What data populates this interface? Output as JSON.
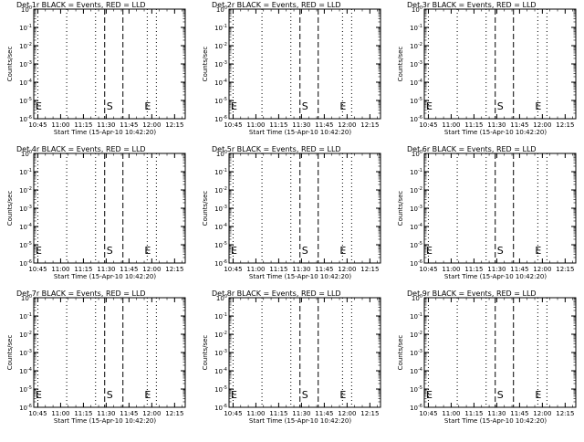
{
  "chart_data": [
    {
      "type": "line",
      "title": "Det 1r BLACK = Events, RED = LLD",
      "xlabel": "Start Time (15-Apr-10 10:42:20)",
      "ylabel": "Counts/sec",
      "x_tick_labels": [
        "10:45",
        "11:00",
        "11:15",
        "11:30",
        "11:45",
        "12:00",
        "12:15"
      ],
      "y_tick_labels": [
        "10^0",
        "10^-1",
        "10^-2",
        "10^-3",
        "10^-4",
        "10^-5",
        "10^-6"
      ],
      "y_scale": "log",
      "ylim": [
        1e-06,
        1
      ],
      "xlim": [
        "10:42:20",
        "12:22:00"
      ],
      "dotted_lines": [
        "10:45",
        "11:04",
        "11:23",
        "11:57",
        "12:03"
      ],
      "dashed_lines": [
        "11:29",
        "11:41"
      ],
      "markers": [
        {
          "label": "E",
          "x": "10:42:20"
        },
        {
          "label": "S",
          "x": "11:29"
        },
        {
          "label": "E",
          "x": "11:54"
        }
      ],
      "series": []
    },
    {
      "type": "line",
      "title": "Det 2r BLACK = Events, RED = LLD",
      "xlabel": "Start Time (15-Apr-10 10:42:20)",
      "ylabel": "Counts/sec",
      "x_tick_labels": [
        "10:45",
        "11:00",
        "11:15",
        "11:30",
        "11:45",
        "12:00",
        "12:15"
      ],
      "y_tick_labels": [
        "10^0",
        "10^-1",
        "10^-2",
        "10^-3",
        "10^-4",
        "10^-5",
        "10^-6"
      ],
      "y_scale": "log",
      "ylim": [
        1e-06,
        1
      ],
      "xlim": [
        "10:42:20",
        "12:22:00"
      ],
      "dotted_lines": [
        "10:45",
        "11:04",
        "11:23",
        "11:57",
        "12:03"
      ],
      "dashed_lines": [
        "11:29",
        "11:41"
      ],
      "markers": [
        {
          "label": "E",
          "x": "10:42:20"
        },
        {
          "label": "S",
          "x": "11:29"
        },
        {
          "label": "E",
          "x": "11:54"
        }
      ],
      "series": []
    },
    {
      "type": "line",
      "title": "Det 3r BLACK = Events, RED = LLD",
      "xlabel": "Start Time (15-Apr-10 10:42:20)",
      "ylabel": "Counts/sec",
      "x_tick_labels": [
        "10:45",
        "11:00",
        "11:15",
        "11:30",
        "11:45",
        "12:00",
        "12:15"
      ],
      "y_tick_labels": [
        "10^0",
        "10^-1",
        "10^-2",
        "10^-3",
        "10^-4",
        "10^-5",
        "10^-6"
      ],
      "y_scale": "log",
      "ylim": [
        1e-06,
        1
      ],
      "xlim": [
        "10:42:20",
        "12:22:00"
      ],
      "dotted_lines": [
        "10:45",
        "11:04",
        "11:23",
        "11:57",
        "12:03"
      ],
      "dashed_lines": [
        "11:29",
        "11:41"
      ],
      "markers": [
        {
          "label": "E",
          "x": "10:42:20"
        },
        {
          "label": "S",
          "x": "11:29"
        },
        {
          "label": "E",
          "x": "11:54"
        }
      ],
      "series": []
    },
    {
      "type": "line",
      "title": "Det 4r BLACK = Events, RED = LLD",
      "xlabel": "Start Time (15-Apr-10 10:42:20)",
      "ylabel": "Counts/sec",
      "x_tick_labels": [
        "10:45",
        "11:00",
        "11:15",
        "11:30",
        "11:45",
        "12:00",
        "12:15"
      ],
      "y_tick_labels": [
        "10^0",
        "10^-1",
        "10^-2",
        "10^-3",
        "10^-4",
        "10^-5",
        "10^-6"
      ],
      "y_scale": "log",
      "ylim": [
        1e-06,
        1
      ],
      "xlim": [
        "10:42:20",
        "12:22:00"
      ],
      "dotted_lines": [
        "10:45",
        "11:04",
        "11:23",
        "11:57",
        "12:03"
      ],
      "dashed_lines": [
        "11:29",
        "11:41"
      ],
      "markers": [
        {
          "label": "E",
          "x": "10:42:20"
        },
        {
          "label": "S",
          "x": "11:29"
        },
        {
          "label": "E",
          "x": "11:54"
        }
      ],
      "series": []
    },
    {
      "type": "line",
      "title": "Det 5r BLACK = Events, RED = LLD",
      "xlabel": "Start Time (15-Apr-10 10:42:20)",
      "ylabel": "Counts/sec",
      "x_tick_labels": [
        "10:45",
        "11:00",
        "11:15",
        "11:30",
        "11:45",
        "12:00",
        "12:15"
      ],
      "y_tick_labels": [
        "10^0",
        "10^-1",
        "10^-2",
        "10^-3",
        "10^-4",
        "10^-5",
        "10^-6"
      ],
      "y_scale": "log",
      "ylim": [
        1e-06,
        1
      ],
      "xlim": [
        "10:42:20",
        "12:22:00"
      ],
      "dotted_lines": [
        "10:45",
        "11:04",
        "11:23",
        "11:57",
        "12:03"
      ],
      "dashed_lines": [
        "11:29",
        "11:41"
      ],
      "markers": [
        {
          "label": "E",
          "x": "10:42:20"
        },
        {
          "label": "S",
          "x": "11:29"
        },
        {
          "label": "E",
          "x": "11:54"
        }
      ],
      "series": []
    },
    {
      "type": "line",
      "title": "Det 6r BLACK = Events, RED = LLD",
      "xlabel": "Start Time (15-Apr-10 10:42:20)",
      "ylabel": "Counts/sec",
      "x_tick_labels": [
        "10:45",
        "11:00",
        "11:15",
        "11:30",
        "11:45",
        "12:00",
        "12:15"
      ],
      "y_tick_labels": [
        "10^0",
        "10^-1",
        "10^-2",
        "10^-3",
        "10^-4",
        "10^-5",
        "10^-6"
      ],
      "y_scale": "log",
      "ylim": [
        1e-06,
        1
      ],
      "xlim": [
        "10:42:20",
        "12:22:00"
      ],
      "dotted_lines": [
        "10:45",
        "11:04",
        "11:23",
        "11:57",
        "12:03"
      ],
      "dashed_lines": [
        "11:29",
        "11:41"
      ],
      "markers": [
        {
          "label": "E",
          "x": "10:42:20"
        },
        {
          "label": "S",
          "x": "11:29"
        },
        {
          "label": "E",
          "x": "11:54"
        }
      ],
      "series": []
    },
    {
      "type": "line",
      "title": "Det 7r BLACK = Events, RED = LLD",
      "xlabel": "Start Time (15-Apr-10 10:42:20)",
      "ylabel": "Counts/sec",
      "x_tick_labels": [
        "10:45",
        "11:00",
        "11:15",
        "11:30",
        "11:45",
        "12:00",
        "12:15"
      ],
      "y_tick_labels": [
        "10^0",
        "10^-1",
        "10^-2",
        "10^-3",
        "10^-4",
        "10^-5",
        "10^-6"
      ],
      "y_scale": "log",
      "ylim": [
        1e-06,
        1
      ],
      "xlim": [
        "10:42:20",
        "12:22:00"
      ],
      "dotted_lines": [
        "10:45",
        "11:04",
        "11:23",
        "11:57",
        "12:03"
      ],
      "dashed_lines": [
        "11:29",
        "11:41"
      ],
      "markers": [
        {
          "label": "E",
          "x": "10:42:20"
        },
        {
          "label": "S",
          "x": "11:29"
        },
        {
          "label": "E",
          "x": "11:54"
        }
      ],
      "series": []
    },
    {
      "type": "line",
      "title": "Det 8r BLACK = Events, RED = LLD",
      "xlabel": "Start Time (15-Apr-10 10:42:20)",
      "ylabel": "Counts/sec",
      "x_tick_labels": [
        "10:45",
        "11:00",
        "11:15",
        "11:30",
        "11:45",
        "12:00",
        "12:15"
      ],
      "y_tick_labels": [
        "10^0",
        "10^-1",
        "10^-2",
        "10^-3",
        "10^-4",
        "10^-5",
        "10^-6"
      ],
      "y_scale": "log",
      "ylim": [
        1e-06,
        1
      ],
      "xlim": [
        "10:42:20",
        "12:22:00"
      ],
      "dotted_lines": [
        "10:45",
        "11:04",
        "11:23",
        "11:57",
        "12:03"
      ],
      "dashed_lines": [
        "11:29",
        "11:41"
      ],
      "markers": [
        {
          "label": "E",
          "x": "10:42:20"
        },
        {
          "label": "S",
          "x": "11:29"
        },
        {
          "label": "E",
          "x": "11:54"
        }
      ],
      "series": []
    },
    {
      "type": "line",
      "title": "Det 9r BLACK = Events, RED = LLD",
      "xlabel": "Start Time (15-Apr-10 10:42:20)",
      "ylabel": "Counts/sec",
      "x_tick_labels": [
        "10:45",
        "11:00",
        "11:15",
        "11:30",
        "11:45",
        "12:00",
        "12:15"
      ],
      "y_tick_labels": [
        "10^0",
        "10^-1",
        "10^-2",
        "10^-3",
        "10^-4",
        "10^-5",
        "10^-6"
      ],
      "y_scale": "log",
      "ylim": [
        1e-06,
        1
      ],
      "xlim": [
        "10:42:20",
        "12:22:00"
      ],
      "dotted_lines": [
        "10:45",
        "11:04",
        "11:23",
        "11:57",
        "12:03"
      ],
      "dashed_lines": [
        "11:29",
        "11:41"
      ],
      "markers": [
        {
          "label": "E",
          "x": "10:42:20"
        },
        {
          "label": "S",
          "x": "11:29"
        },
        {
          "label": "E",
          "x": "11:54"
        }
      ],
      "series": []
    }
  ],
  "colors": {
    "background": "#ffffff",
    "foreground": "#000000"
  }
}
